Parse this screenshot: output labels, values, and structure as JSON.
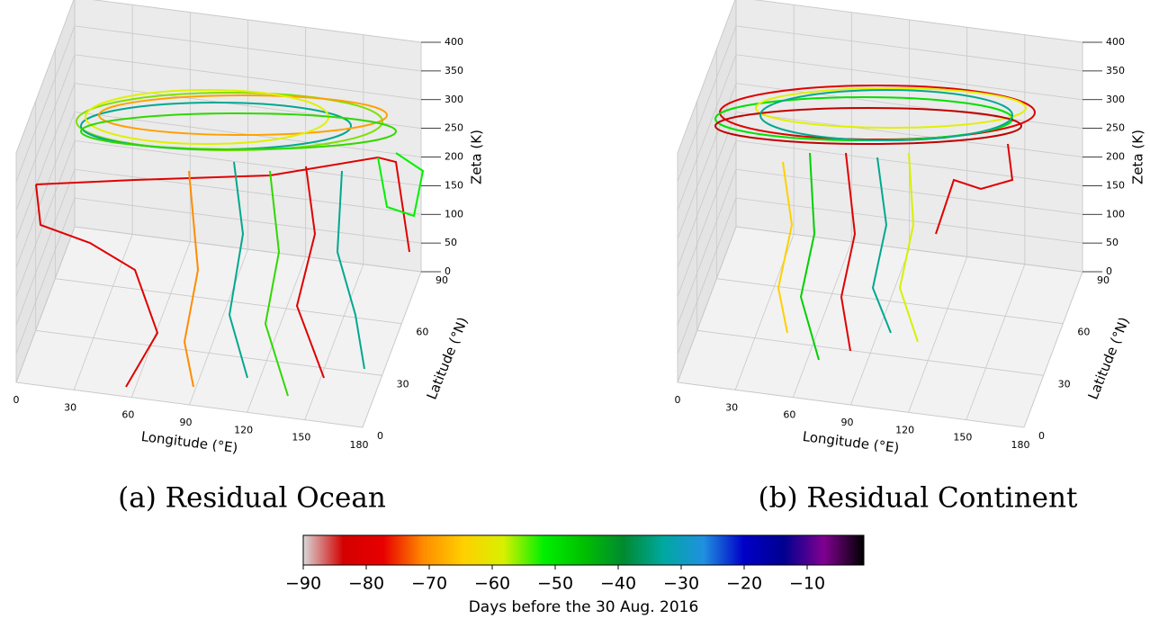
{
  "chart_data": [
    {
      "type": "trajectory3d",
      "caption": "(a) Residual Ocean",
      "xlabel": "Longitude (°E)",
      "ylabel": "Latitude (°N)",
      "zlabel": "Zeta (K)",
      "xlim": [
        0,
        180
      ],
      "xticks": [
        0,
        30,
        60,
        90,
        120,
        150,
        180
      ],
      "ylim": [
        0,
        90
      ],
      "yticks": [
        0,
        30,
        60,
        90
      ],
      "zlim": [
        0,
        400
      ],
      "zticks": [
        0,
        50,
        100,
        150,
        200,
        250,
        300,
        350,
        400
      ],
      "grid": true
    },
    {
      "type": "trajectory3d",
      "caption": "(b) Residual Continent",
      "xlabel": "Longitude (°E)",
      "ylabel": "Latitude (°N)",
      "zlabel": "Zeta (K)",
      "xlim": [
        0,
        180
      ],
      "xticks": [
        0,
        30,
        60,
        90,
        120,
        150,
        180
      ],
      "ylim": [
        0,
        90
      ],
      "yticks": [
        0,
        30,
        60,
        90
      ],
      "zlim": [
        0,
        400
      ],
      "zticks": [
        0,
        50,
        100,
        150,
        200,
        250,
        300,
        350,
        400
      ],
      "grid": true
    },
    {
      "type": "colorbar",
      "label": "Days before the 30 Aug. 2016",
      "lim": [
        -90,
        -1
      ],
      "ticks": [
        {
          "value": -90,
          "label": "−90"
        },
        {
          "value": -80,
          "label": "−80"
        },
        {
          "value": -70,
          "label": "−70"
        },
        {
          "value": -60,
          "label": "−60"
        },
        {
          "value": -50,
          "label": "−50"
        },
        {
          "value": -40,
          "label": "−40"
        },
        {
          "value": -30,
          "label": "−30"
        },
        {
          "value": -20,
          "label": "−20"
        },
        {
          "value": -10,
          "label": "−10"
        }
      ],
      "colors": [
        "#d8d8d8",
        "#d40000",
        "#e80000",
        "#ff8c00",
        "#ffd000",
        "#d8f000",
        "#00f000",
        "#00c000",
        "#008a30",
        "#00a8a0",
        "#2090e0",
        "#0000c8",
        "#000090",
        "#800090",
        "#000000"
      ]
    }
  ]
}
